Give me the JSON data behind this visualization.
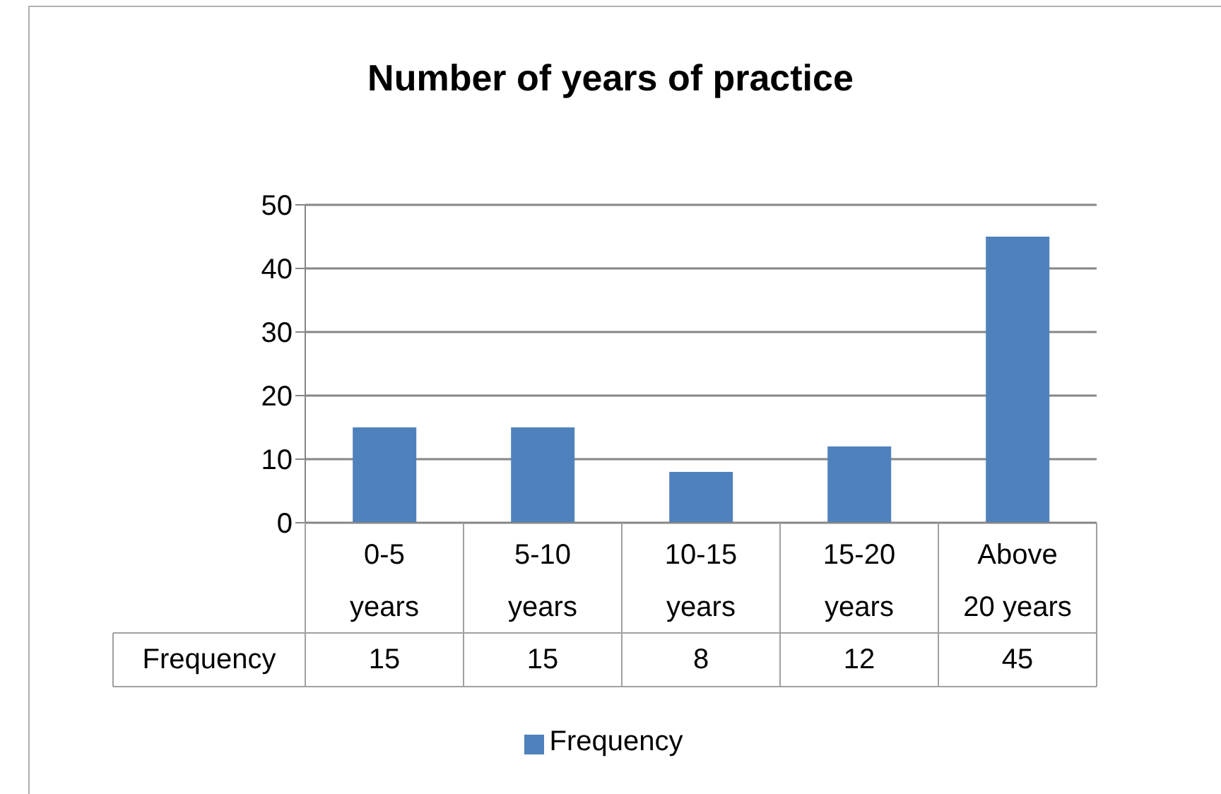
{
  "chart_data": {
    "type": "bar",
    "title": "Number of years of practice",
    "categories": [
      "0-5 years",
      "5-10 years",
      "10-15 years",
      "15-20 years",
      "Above 20 years"
    ],
    "series": [
      {
        "name": "Frequency",
        "color": "#4f81bd",
        "values": [
          15,
          15,
          8,
          12,
          45
        ]
      }
    ],
    "ylim": [
      0,
      50
    ],
    "yticks": [
      0,
      10,
      20,
      30,
      40,
      50
    ],
    "grid": "y",
    "legend": "bottom",
    "data_labels": true
  }
}
